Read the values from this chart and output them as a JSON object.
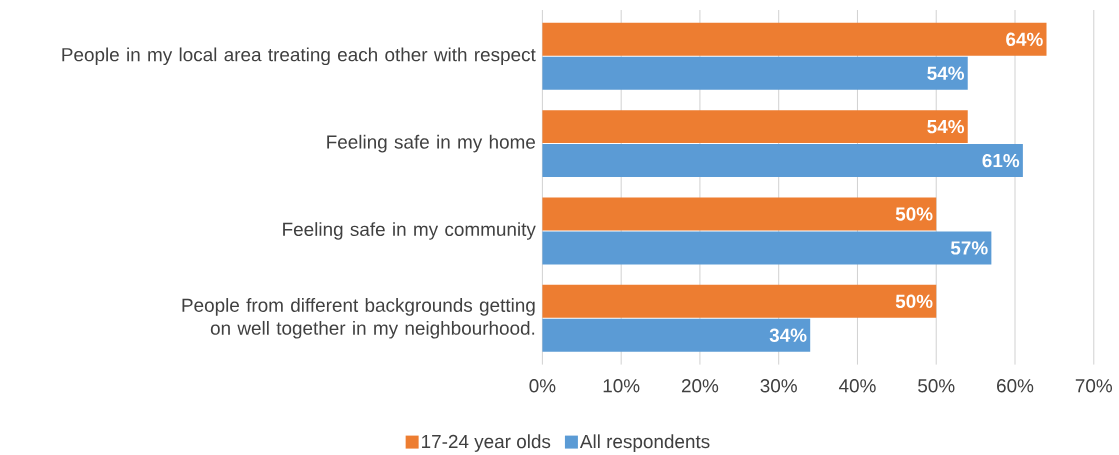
{
  "chart_data": {
    "type": "bar",
    "orientation": "horizontal",
    "categories": [
      "People in my local area treating each other with respect",
      "Feeling safe in my home",
      "Feeling safe in my community",
      "People from different backgrounds getting on well together in my neighbourhood."
    ],
    "series": [
      {
        "name": "17-24 year olds",
        "color": "#ed7d31",
        "values": [
          64,
          54,
          50,
          50
        ],
        "value_labels": [
          "64%",
          "54%",
          "50%",
          "50%"
        ]
      },
      {
        "name": "All respondents",
        "color": "#5b9bd5",
        "values": [
          54,
          61,
          57,
          34
        ],
        "value_labels": [
          "54%",
          "61%",
          "57%",
          "34%"
        ]
      }
    ],
    "xlim": [
      0,
      70
    ],
    "xticks": [
      {
        "value": 0,
        "label": "0%"
      },
      {
        "value": 10,
        "label": "10%"
      },
      {
        "value": 20,
        "label": "20%"
      },
      {
        "value": 30,
        "label": "30%"
      },
      {
        "value": 40,
        "label": "40%"
      },
      {
        "value": 50,
        "label": "50%"
      },
      {
        "value": 60,
        "label": "60%"
      },
      {
        "value": 70,
        "label": "70%"
      }
    ],
    "grid": "x",
    "legend": "bottom"
  }
}
